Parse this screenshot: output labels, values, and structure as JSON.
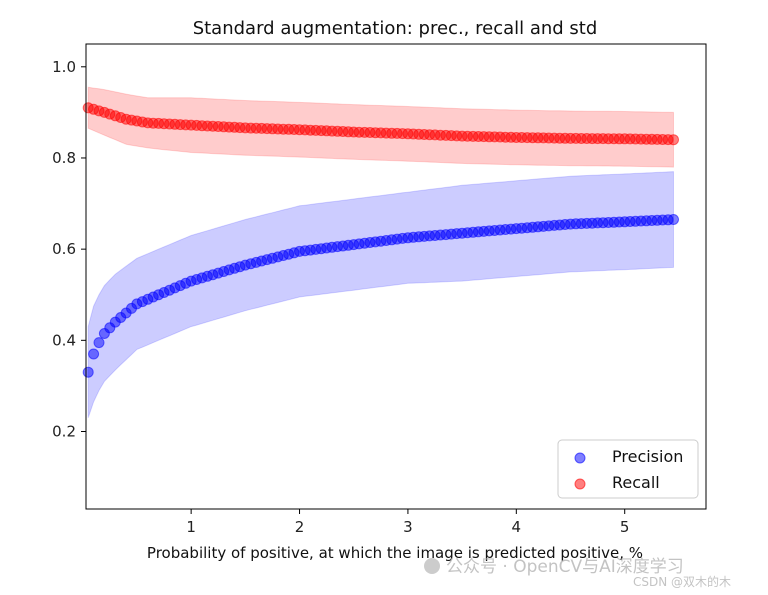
{
  "chart_data": {
    "type": "scatter",
    "title": "Standard augmentation: prec., recall and std",
    "xlabel": "Probability of positive, at which the image is predicted positive, %",
    "ylabel": "",
    "xlim": [
      0.03,
      5.75
    ],
    "ylim": [
      0.03,
      1.05
    ],
    "xticks": [
      1,
      2,
      3,
      4,
      5
    ],
    "yticks": [
      0.2,
      0.4,
      0.6,
      0.8,
      1.0
    ],
    "xtick_labels": [
      "1",
      "2",
      "3",
      "4",
      "5"
    ],
    "ytick_labels": [
      "0.2",
      "0.4",
      "0.6",
      "0.8",
      "1.0"
    ],
    "grid": false,
    "legend_position": "bottom-right",
    "series": [
      {
        "name": "Precision",
        "color": "#0000ff",
        "band_color": "#0000ff",
        "x_start": 0.05,
        "x_end": 5.45,
        "x_step": 0.05,
        "knots_x": [
          0.05,
          0.1,
          0.15,
          0.2,
          0.3,
          0.5,
          0.8,
          1.0,
          1.5,
          2.0,
          2.5,
          3.0,
          3.5,
          4.0,
          4.5,
          5.0,
          5.45
        ],
        "knots_y": [
          0.33,
          0.37,
          0.395,
          0.415,
          0.44,
          0.48,
          0.51,
          0.53,
          0.565,
          0.595,
          0.61,
          0.625,
          0.635,
          0.645,
          0.655,
          0.66,
          0.665
        ],
        "knots_std": [
          0.1,
          0.105,
          0.105,
          0.105,
          0.105,
          0.1,
          0.1,
          0.1,
          0.1,
          0.1,
          0.1,
          0.1,
          0.105,
          0.105,
          0.105,
          0.105,
          0.105
        ]
      },
      {
        "name": "Recall",
        "color": "#ff0000",
        "band_color": "#ff0000",
        "x_start": 0.05,
        "x_end": 5.45,
        "x_step": 0.05,
        "knots_x": [
          0.05,
          0.2,
          0.4,
          0.6,
          1.0,
          1.5,
          2.0,
          2.5,
          3.0,
          3.5,
          4.0,
          4.5,
          5.0,
          5.45
        ],
        "knots_y": [
          0.91,
          0.9,
          0.885,
          0.877,
          0.872,
          0.866,
          0.862,
          0.857,
          0.853,
          0.848,
          0.845,
          0.843,
          0.842,
          0.84
        ],
        "knots_std": [
          0.045,
          0.05,
          0.055,
          0.055,
          0.06,
          0.06,
          0.06,
          0.06,
          0.06,
          0.06,
          0.06,
          0.06,
          0.06,
          0.06
        ]
      }
    ]
  },
  "watermark": {
    "main": "公众号 · OpenCV与AI深度学习",
    "credit": "CSDN @双木的木"
  }
}
